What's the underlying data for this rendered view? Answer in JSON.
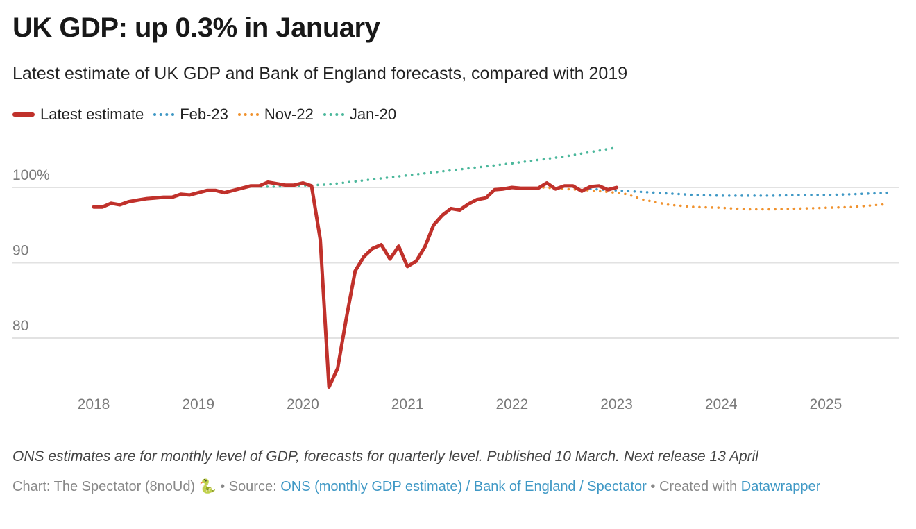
{
  "title": "UK GDP: up 0.3% in January",
  "subtitle": "Latest estimate of UK GDP and Bank of England forecasts, compared with 2019",
  "legend": [
    {
      "label": "Latest estimate",
      "color": "#c0312b",
      "style": "solid"
    },
    {
      "label": "Feb-23",
      "color": "#3f98c5",
      "style": "dotted"
    },
    {
      "label": "Nov-22",
      "color": "#f0922e",
      "style": "dotted"
    },
    {
      "label": "Jan-20",
      "color": "#4cb89c",
      "style": "dotted"
    }
  ],
  "note": "ONS estimates are for monthly level of GDP, forecasts for quarterly level. Published 10 March. Next release 13 April",
  "byline": {
    "chart_prefix": "Chart: The Spectator (8noUd)",
    "snake_icon": "🐍",
    "source_prefix": " • Source: ",
    "source_link": "ONS (monthly GDP estimate) / Bank of England / Spectator",
    "created_prefix": " • Created with ",
    "created_link": "Datawrapper"
  },
  "chart_data": {
    "type": "line",
    "title": "UK GDP: up 0.3% in January",
    "xlabel": "",
    "ylabel": "",
    "x_unit": "decimal year",
    "xlim": [
      2018,
      2025.6
    ],
    "ylim": [
      72,
      107
    ],
    "x_ticks": [
      2018,
      2019,
      2020,
      2021,
      2022,
      2023,
      2024,
      2025
    ],
    "x_tick_labels": [
      "2018",
      "2019",
      "2020",
      "2021",
      "2022",
      "2023",
      "2024",
      "2025"
    ],
    "y_ticks": [
      80,
      90,
      100
    ],
    "y_tick_labels": [
      "80",
      "90",
      "100%"
    ],
    "grid": true,
    "legend_position": "top-left",
    "series": [
      {
        "name": "Latest estimate",
        "color": "#c0312b",
        "style": "solid",
        "x_start": 2018.0,
        "x_step_months": 1,
        "values": [
          97.4,
          97.4,
          97.9,
          97.7,
          98.1,
          98.3,
          98.5,
          98.6,
          98.7,
          98.7,
          99.1,
          99.0,
          99.3,
          99.6,
          99.6,
          99.3,
          99.6,
          99.9,
          100.2,
          100.2,
          100.7,
          100.5,
          100.3,
          100.3,
          100.6,
          100.2,
          93.1,
          73.5,
          76.0,
          82.7,
          88.9,
          90.8,
          91.9,
          92.4,
          90.5,
          92.2,
          89.5,
          90.2,
          92.1,
          95.0,
          96.3,
          97.2,
          97.0,
          97.8,
          98.4,
          98.6,
          99.7,
          99.8,
          100.0,
          99.9,
          99.9,
          99.9,
          100.6,
          99.8,
          100.2,
          100.2,
          99.5,
          100.1,
          100.2,
          99.7,
          100.0
        ]
      },
      {
        "name": "Jan-20",
        "color": "#4cb89c",
        "style": "dotted",
        "x": [
          2019.6,
          2019.75,
          2019.9,
          2020.1,
          2020.25,
          2020.5,
          2021.0,
          2021.5,
          2022.0,
          2022.5,
          2023.0
        ],
        "values": [
          100.1,
          100.1,
          100.2,
          100.3,
          100.4,
          100.8,
          101.6,
          102.4,
          103.2,
          104.1,
          105.3
        ]
      },
      {
        "name": "Nov-22",
        "color": "#f0922e",
        "style": "dotted",
        "x": [
          2022.3,
          2022.5,
          2022.75,
          2023.0,
          2023.1,
          2023.25,
          2023.5,
          2023.75,
          2024.0,
          2024.25,
          2024.5,
          2024.75,
          2025.0,
          2025.25,
          2025.6
        ],
        "values": [
          100.0,
          99.8,
          99.6,
          99.3,
          99.1,
          98.4,
          97.7,
          97.4,
          97.3,
          97.1,
          97.1,
          97.2,
          97.3,
          97.4,
          97.8
        ]
      },
      {
        "name": "Feb-23",
        "color": "#3f98c5",
        "style": "dotted",
        "x": [
          2022.75,
          2023.0,
          2023.25,
          2023.5,
          2023.75,
          2024.0,
          2024.25,
          2024.5,
          2024.75,
          2025.0,
          2025.25,
          2025.6
        ],
        "values": [
          99.8,
          99.6,
          99.4,
          99.2,
          99.0,
          98.9,
          98.9,
          98.9,
          99.0,
          99.0,
          99.1,
          99.3
        ]
      }
    ]
  }
}
